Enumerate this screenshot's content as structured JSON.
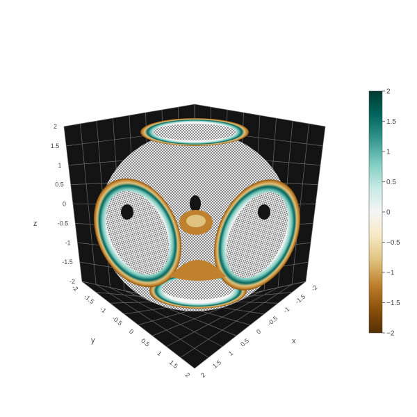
{
  "chart_data": {
    "type": "isosurface",
    "title": "",
    "axes": {
      "x": {
        "label": "x",
        "range": [
          -2,
          2
        ],
        "ticks": [
          "-2",
          "-1.5",
          "-1",
          "-0.5",
          "0",
          "0.5",
          "1",
          "1.5",
          "2"
        ]
      },
      "y": {
        "label": "y",
        "range": [
          -2,
          2
        ],
        "ticks": [
          "-2",
          "-1.5",
          "-1",
          "-0.5",
          "0",
          "0.5",
          "1",
          "1.5",
          "2"
        ]
      },
      "z": {
        "label": "z",
        "range": [
          -2,
          2
        ],
        "ticks": [
          "-2",
          "-1.5",
          "-1",
          "-0.5",
          "0",
          "0.5",
          "1",
          "1.5",
          "2"
        ]
      }
    },
    "colorscale": {
      "name": "BrBG",
      "min": -2,
      "max": 2,
      "stops": [
        "#543005",
        "#8c510a",
        "#bf812d",
        "#dfc27d",
        "#f6e8c3",
        "#f5f5f5",
        "#c7eae5",
        "#80cdc1",
        "#35978f",
        "#01665e",
        "#003c30"
      ],
      "tick_labels": [
        "2",
        "1.5",
        "1",
        "0.5",
        "0",
        "−0.5",
        "−1",
        "−1.5",
        "−2"
      ],
      "tick_values": [
        2,
        1.5,
        1,
        0.5,
        0,
        -0.5,
        -1,
        -1.5,
        -2
      ]
    },
    "background_walls": "#141414",
    "grid": true
  }
}
